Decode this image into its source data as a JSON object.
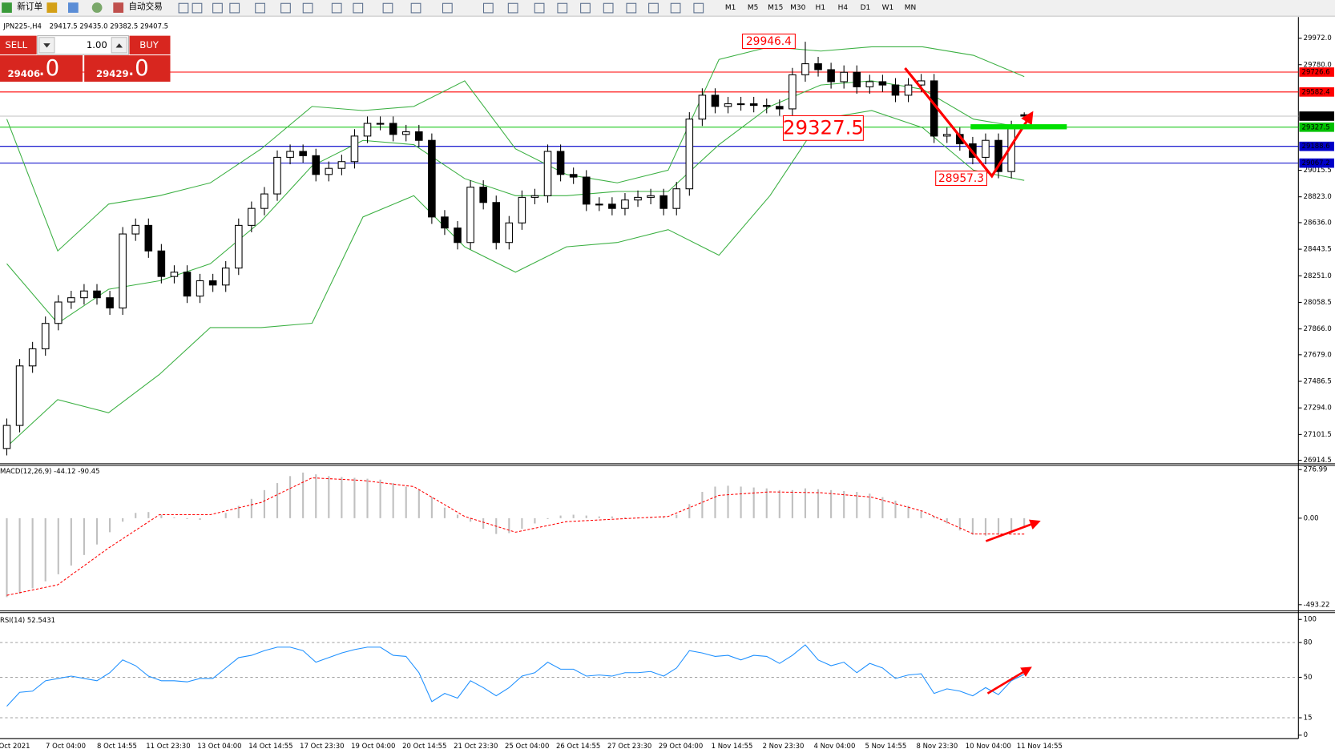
{
  "toolbar": {
    "new_order": "新订单",
    "auto_trading": "自动交易",
    "timeframes": [
      "M1",
      "M5",
      "M15",
      "M30",
      "H1",
      "H4",
      "D1",
      "W1",
      "MN"
    ]
  },
  "order_panel": {
    "sell": "SELL",
    "lots": "1.00",
    "buy": "BUY",
    "bid_main": "29406",
    "bid_frac": ".0",
    "ask_main": "29429",
    "ask_frac": ".0"
  },
  "chart_data": [
    {
      "type": "candlestick",
      "title": "JPN225-,H4",
      "subtitle": "29417.5 29435.0 29382.5 29407.5",
      "bull_color": "#ffffff",
      "bear_color": "#000000",
      "band_color": "#3cb043",
      "open": [
        27000,
        27167,
        27598,
        27722,
        27906,
        28061,
        28092,
        28141,
        28092,
        28018,
        28554,
        28616,
        28431,
        28246,
        28277,
        28104,
        28215,
        28184,
        28307,
        28616,
        28739,
        28844,
        29109,
        29152,
        29121,
        28985,
        29029,
        29078,
        29263,
        29355,
        29355,
        29275,
        29294,
        29232,
        28677,
        28597,
        28492,
        28893,
        28782,
        28492,
        28634,
        28819,
        28831,
        29152,
        28985,
        28966,
        28770,
        28770,
        28739,
        28800,
        28819,
        28831,
        28739,
        28881,
        29386,
        29559,
        29478,
        29497,
        29497,
        29485,
        29478,
        29460,
        29707,
        29787,
        29744,
        29657,
        29725,
        29620,
        29657,
        29633,
        29559,
        29633,
        29663,
        29263,
        29275,
        29207,
        29109,
        29232,
        29006,
        29417.5
      ],
      "high": [
        27217,
        27648,
        27772,
        27956,
        28111,
        28142,
        28191,
        28191,
        28142,
        28604,
        28666,
        28666,
        28481,
        28327,
        28327,
        28265,
        28265,
        28357,
        28666,
        28789,
        28894,
        29159,
        29202,
        29202,
        29171,
        29079,
        29128,
        29313,
        29405,
        29405,
        29405,
        29344,
        29344,
        29282,
        28727,
        28647,
        28943,
        28943,
        28832,
        28684,
        28869,
        28881,
        29202,
        29202,
        29035,
        29016,
        28820,
        28820,
        28850,
        28869,
        28881,
        28881,
        28931,
        29436,
        29609,
        29609,
        29547,
        29547,
        29547,
        29535,
        29528,
        29757,
        29946.4,
        29837,
        29794,
        29775,
        29775,
        29707,
        29707,
        29683,
        29683,
        29713,
        29713,
        29325,
        29325,
        29257,
        29282,
        29282,
        29374,
        29435
      ],
      "low": [
        26950,
        27117,
        27548,
        27672,
        27856,
        28011,
        28042,
        28042,
        27968,
        27968,
        28504,
        28381,
        28196,
        28196,
        28054,
        28054,
        28134,
        28134,
        28257,
        28566,
        28689,
        28794,
        29059,
        29071,
        28935,
        28935,
        28979,
        29028,
        29213,
        29305,
        29225,
        29225,
        29182,
        28627,
        28547,
        28442,
        28442,
        28732,
        28442,
        28442,
        28584,
        28769,
        28781,
        28935,
        28916,
        28720,
        28720,
        28689,
        28689,
        28750,
        28769,
        28689,
        28689,
        28831,
        29336,
        29428,
        29428,
        29447,
        29435,
        29428,
        29410,
        29410,
        29657,
        29694,
        29607,
        29607,
        29570,
        29570,
        29583,
        29509,
        29509,
        29583,
        29213,
        29213,
        29157,
        29059,
        29059,
        28957.3,
        28956,
        29382.5
      ],
      "close": [
        27167,
        27598,
        27722,
        27906,
        28061,
        28092,
        28141,
        28092,
        28018,
        28554,
        28616,
        28431,
        28246,
        28277,
        28104,
        28215,
        28184,
        28307,
        28616,
        28739,
        28844,
        29109,
        29152,
        29121,
        28985,
        29029,
        29078,
        29263,
        29355,
        29355,
        29275,
        29294,
        29232,
        28677,
        28597,
        28492,
        28893,
        28782,
        28492,
        28634,
        28819,
        28831,
        29152,
        28985,
        28966,
        28770,
        28770,
        28739,
        28800,
        28819,
        28831,
        28739,
        28881,
        29386,
        29559,
        29478,
        29497,
        29497,
        29485,
        29478,
        29460,
        29707,
        29787,
        29744,
        29657,
        29725,
        29620,
        29657,
        29633,
        29559,
        29633,
        29663,
        29263,
        29275,
        29207,
        29109,
        29232,
        29006,
        29324,
        29407.5
      ],
      "bands": {
        "upper": [
          29386,
          28431,
          28770,
          28831,
          28924,
          29170,
          29478,
          29448,
          29478,
          29663,
          29170,
          28985,
          28924,
          29016,
          29818,
          29910,
          29879,
          29910,
          29910,
          29848,
          29694
        ],
        "middle": [
          28338,
          27907,
          28153,
          28215,
          28338,
          28646,
          29047,
          29232,
          29201,
          28955,
          28831,
          28831,
          28862,
          28862,
          29201,
          29478,
          29633,
          29663,
          29602,
          29386,
          29324
        ],
        "lower": [
          27013,
          27354,
          27259,
          27537,
          27876,
          27876,
          27907,
          28677,
          28831,
          28461,
          28277,
          28461,
          28492,
          28585,
          28400,
          28831,
          29386,
          29448,
          29324,
          29016,
          28942
        ]
      },
      "levels": [
        {
          "value": 29726.6,
          "color": "#ff0000",
          "tag_color": "#ff0000"
        },
        {
          "value": 29582.4,
          "color": "#ff0000",
          "tag_color": "#ff0000"
        },
        {
          "value": 29407.5,
          "color": "#c0c0c0",
          "tag_color": "#000000"
        },
        {
          "value": 29327.5,
          "color": "#00c000",
          "tag_color": "#00c000"
        },
        {
          "value": 29188.6,
          "color": "#0000c8",
          "tag_color": "#0000c8"
        },
        {
          "value": 29067.2,
          "color": "#0000c8",
          "tag_color": "#0000c8"
        }
      ],
      "annotations": [
        "29946.4",
        "29327.5",
        "28957.3"
      ],
      "ylim": [
        26902,
        30107
      ],
      "yticks": [
        {
          "value": 29972,
          "label": "29972.0"
        },
        {
          "value": 29780,
          "label": "29780.0"
        },
        29015.5,
        {
          "value": 28823,
          "label": "28823.0"
        },
        {
          "value": 28636,
          "label": "28636.0"
        },
        28443.5,
        {
          "value": 28251,
          "label": "28251.0"
        },
        28058.5,
        {
          "value": 27866,
          "label": "27866.0"
        },
        {
          "value": 27679,
          "label": "27679.0"
        },
        27486.5,
        {
          "value": 27294,
          "label": "27294.0"
        },
        27101.5,
        26914.5
      ],
      "time_labels": [
        "Oct 2021",
        "7 Oct 04:00",
        "8 Oct 14:55",
        "11 Oct 23:30",
        "13 Oct 04:00",
        "14 Oct 14:55",
        "17 Oct 23:30",
        "19 Oct 04:00",
        "20 Oct 14:55",
        "21 Oct 23:30",
        "25 Oct 04:00",
        "26 Oct 14:55",
        "27 Oct 23:30",
        "29 Oct 04:00",
        "1 Nov 14:55",
        "2 Nov 23:30",
        "4 Nov 04:00",
        "5 Nov 14:55",
        "8 Nov 23:30",
        "10 Nov 04:00",
        "11 Nov 14:55"
      ]
    },
    {
      "type": "macd",
      "title": "MACD(12,26,9) -44.12 -90.45",
      "histogram_color": "#c0c0c0",
      "signal_color": "#ff0000",
      "histogram": [
        -450,
        -430,
        -400,
        -360,
        -320,
        -270,
        -210,
        -150,
        -80,
        -20,
        30,
        35,
        20,
        5,
        -5,
        -10,
        0,
        30,
        70,
        110,
        160,
        200,
        240,
        260,
        250,
        240,
        235,
        230,
        225,
        220,
        200,
        180,
        160,
        120,
        60,
        20,
        -20,
        -60,
        -90,
        -85,
        -60,
        -30,
        -5,
        15,
        20,
        15,
        10,
        10,
        5,
        5,
        5,
        5,
        20,
        80,
        150,
        180,
        185,
        180,
        175,
        170,
        160,
        160,
        170,
        165,
        160,
        155,
        150,
        140,
        120,
        100,
        70,
        40,
        10,
        -30,
        -70,
        -95,
        -100,
        -95,
        -85,
        -44.12
      ],
      "signal": [
        -440,
        -380,
        -170,
        20,
        20,
        90,
        230,
        215,
        180,
        10,
        -80,
        -20,
        -5,
        10,
        130,
        150,
        145,
        120,
        40,
        -90,
        -90.45
      ],
      "ylim": [
        -519,
        296
      ],
      "yticks": [
        276.99,
        {
          "value": 0,
          "label": "0.00"
        },
        -493.22
      ]
    },
    {
      "type": "line",
      "title": "RSI(14) 52.5431",
      "color": "#1e90ff",
      "values": [
        25,
        37,
        38,
        47,
        49,
        51,
        49,
        47,
        54,
        65,
        60,
        51,
        47,
        47,
        46,
        49,
        49,
        58,
        67,
        69,
        73,
        76,
        76,
        73,
        63,
        67,
        71,
        74,
        76,
        76,
        69,
        68,
        54,
        29,
        36,
        32,
        47,
        41,
        34,
        41,
        51,
        54,
        63,
        57,
        57,
        51,
        52,
        51,
        54,
        54,
        55,
        51,
        58,
        73,
        71,
        68,
        69,
        65,
        69,
        68,
        62,
        69,
        78,
        65,
        60,
        63,
        54,
        62,
        58,
        49,
        52,
        53,
        36,
        40,
        38,
        34,
        41,
        35,
        47,
        52.5431
      ],
      "ylim": [
        0,
        100
      ],
      "yticks": [
        100,
        80,
        50,
        15,
        0
      ],
      "levels": [
        80,
        50,
        15
      ]
    }
  ]
}
